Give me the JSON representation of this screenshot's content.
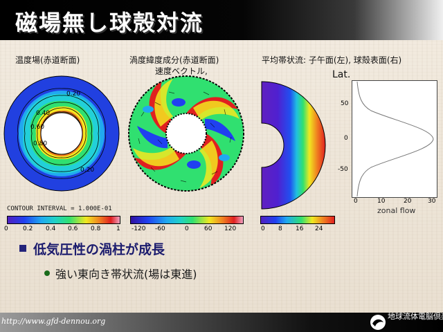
{
  "slide": {
    "title": "磁場無し球殻対流",
    "url": "http://www.gfd-dennou.org",
    "logo_text": "地球流体電脳倶楽部"
  },
  "panels": {
    "p1": {
      "label": "温度場(赤道断面)",
      "contour_note": "CONTOUR INTERVAL = 1.000E-01",
      "contour_labels": [
        "0.20",
        "0.40",
        "0.60",
        "0.80",
        "0.20"
      ],
      "colorbar_ticks": [
        "0",
        "0.2",
        "0.4",
        "0.6",
        "0.8",
        "1"
      ]
    },
    "p2": {
      "label_line1": "渦度緯度成分(赤道断面)",
      "label_line2": "速度ベクトル,",
      "colorbar_ticks": [
        "-120",
        "-60",
        "0",
        "60",
        "120"
      ]
    },
    "p3": {
      "label": "平均帯状流:  子午面(左), 球殻表面(右)",
      "colorbar_ticks": [
        "0",
        "8",
        "16",
        "24"
      ]
    },
    "p4": {
      "y_label": "Lat.",
      "x_label": "zonal flow",
      "y_ticks": [
        "50",
        "0",
        "-50"
      ],
      "x_ticks": [
        "0",
        "10",
        "20",
        "30"
      ]
    }
  },
  "bullets": [
    {
      "text": "低気圧性の渦柱が成長"
    },
    {
      "text": "強い東向き帯状流(場は東進)"
    }
  ],
  "colors": {
    "title_text": "#ffffff",
    "bullet1_text": "#1c1c6e",
    "accent_green": "#1a6b1a"
  }
}
